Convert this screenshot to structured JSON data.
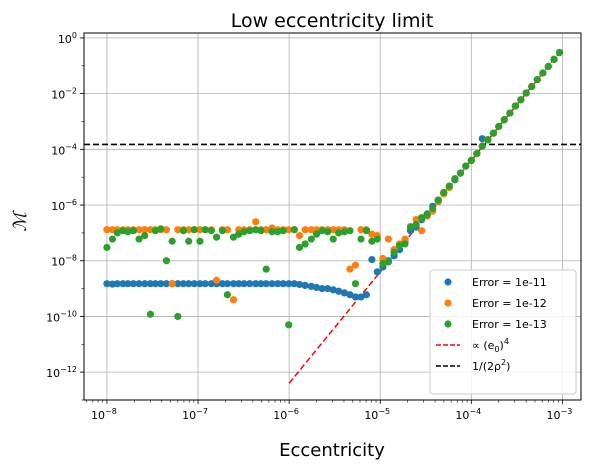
{
  "chart_data": {
    "type": "scatter",
    "title": "Low eccentricity limit",
    "xlabel": "Eccentricity",
    "ylabel": "ℳ",
    "xscale": "log",
    "yscale": "log",
    "xlim": [
      5.6e-09,
      0.0016
    ],
    "ylim": [
      1e-13,
      1.5
    ],
    "x_ticks": [
      {
        "value": 1e-08,
        "base": "10",
        "exp": "−8"
      },
      {
        "value": 1e-07,
        "base": "10",
        "exp": "−7"
      },
      {
        "value": 1e-06,
        "base": "10",
        "exp": "−6"
      },
      {
        "value": 1e-05,
        "base": "10",
        "exp": "−5"
      },
      {
        "value": 0.0001,
        "base": "10",
        "exp": "−4"
      },
      {
        "value": 0.001,
        "base": "10",
        "exp": "−3"
      }
    ],
    "y_ticks": [
      {
        "value": 1e-12,
        "base": "10",
        "exp": "−12"
      },
      {
        "value": 1e-10,
        "base": "10",
        "exp": "−10"
      },
      {
        "value": 1e-08,
        "base": "10",
        "exp": "−8"
      },
      {
        "value": 1e-06,
        "base": "10",
        "exp": "−6"
      },
      {
        "value": 0.0001,
        "base": "10",
        "exp": "−4"
      },
      {
        "value": 0.01,
        "base": "10",
        "exp": "−2"
      },
      {
        "value": 1,
        "base": "10",
        "exp": "0"
      }
    ],
    "grid": true,
    "legend_position": "lower-right",
    "x": [
      1e-08,
      1.1e-08,
      1.3e-08,
      1.5e-08,
      1.7e-08,
      2e-08,
      2.2e-08,
      2.6e-08,
      3e-08,
      3.4e-08,
      3.9e-08,
      4.5e-08,
      5.2e-08,
      6e-08,
      6.9e-08,
      7.9e-08,
      9.1e-08,
      1.05e-07,
      1.2e-07,
      1.4e-07,
      1.6e-07,
      1.8e-07,
      2.1e-07,
      2.4e-07,
      2.8e-07,
      3.2e-07,
      3.7e-07,
      4.3e-07,
      4.9e-07,
      5.6e-07,
      6.5e-07,
      7.5e-07,
      8.6e-07,
      9.9e-07,
      1.14e-06,
      1.3e-06,
      1.5e-06,
      1.7e-06,
      2e-06,
      2.3e-06,
      2.6e-06,
      3e-06,
      3.5e-06,
      4e-06,
      4.6e-06,
      5.3e-06,
      6.1e-06,
      7e-06,
      8.1e-06,
      9.3e-06,
      1.07e-05,
      1.23e-05,
      1.42e-05,
      1.63e-05,
      1.87e-05,
      2.15e-05,
      2.48e-05,
      2.85e-05,
      3.28e-05,
      3.77e-05,
      4.33e-05,
      4.98e-05,
      5.73e-05,
      6.6e-05,
      7.6e-05,
      8.7e-05,
      0.0001,
      0.000115,
      0.000132,
      0.000152,
      0.000175,
      0.0002,
      0.00023,
      0.000265,
      0.000305,
      0.00035,
      0.0004,
      0.00046,
      0.00053,
      0.00061,
      0.0007,
      0.00081,
      0.00093
    ],
    "series": [
      {
        "name": "Error = 1e-11",
        "color": "#1f77b4",
        "kind": "points",
        "points": [
          [
            1e-08,
            1.5e-09
          ],
          [
            1.15e-08,
            1.45e-09
          ],
          [
            1.3e-08,
            1.5e-09
          ],
          [
            1.5e-08,
            1.5e-09
          ],
          [
            1.7e-08,
            1.5e-09
          ],
          [
            1.95e-08,
            1.5e-09
          ],
          [
            2.25e-08,
            1.5e-09
          ],
          [
            2.6e-08,
            1.5e-09
          ],
          [
            3e-08,
            1.5e-09
          ],
          [
            3.4e-08,
            1.5e-09
          ],
          [
            3.9e-08,
            1.5e-09
          ],
          [
            4.5e-08,
            1.5e-09
          ],
          [
            5.2e-08,
            1.5e-09
          ],
          [
            6e-08,
            1.5e-09
          ],
          [
            6.9e-08,
            1.5e-09
          ],
          [
            7.9e-08,
            1.5e-09
          ],
          [
            9.1e-08,
            1.5e-09
          ],
          [
            1.05e-07,
            1.5e-09
          ],
          [
            1.2e-07,
            1.5e-09
          ],
          [
            1.4e-07,
            1.5e-09
          ],
          [
            1.6e-07,
            1.5e-09
          ],
          [
            1.85e-07,
            1.5e-09
          ],
          [
            2.1e-07,
            1.5e-09
          ],
          [
            2.45e-07,
            1.5e-09
          ],
          [
            2.8e-07,
            1.5e-09
          ],
          [
            3.2e-07,
            1.5e-09
          ],
          [
            3.7e-07,
            1.5e-09
          ],
          [
            4.3e-07,
            1.5e-09
          ],
          [
            4.9e-07,
            1.5e-09
          ],
          [
            5.6e-07,
            1.5e-09
          ],
          [
            6.5e-07,
            1.5e-09
          ],
          [
            7.5e-07,
            1.5e-09
          ],
          [
            8.6e-07,
            1.5e-09
          ],
          [
            9.9e-07,
            1.5e-09
          ],
          [
            1.14e-06,
            1.5e-09
          ],
          [
            1.3e-06,
            1.4e-09
          ],
          [
            1.5e-06,
            1.3e-09
          ],
          [
            1.75e-06,
            1.2e-09
          ],
          [
            2e-06,
            1.1e-09
          ],
          [
            2.3e-06,
            1e-09
          ],
          [
            2.65e-06,
            1e-09
          ],
          [
            3.05e-06,
            9e-10
          ],
          [
            3.5e-06,
            8e-10
          ],
          [
            4.05e-06,
            7e-10
          ],
          [
            4.65e-06,
            6e-10
          ],
          [
            5.35e-06,
            5e-10
          ],
          [
            6.15e-06,
            5e-10
          ],
          [
            7.05e-06,
            6e-10
          ],
          [
            8.1e-06,
            1.1e-08
          ],
          [
            9.3e-06,
            4e-09
          ],
          [
            1.07e-05,
            6e-09
          ],
          [
            1.23e-05,
            1e-08
          ],
          [
            1.42e-05,
            1.5e-08
          ],
          [
            1.63e-05,
            2.5e-08
          ],
          [
            1.87e-05,
            5e-08
          ],
          [
            2.15e-05,
            1.2e-07
          ],
          [
            2.48e-05,
            1.6e-07
          ],
          [
            2.85e-05,
            3e-07
          ],
          [
            3.28e-05,
            4.8e-07
          ],
          [
            3.77e-05,
            9e-07
          ],
          [
            4.33e-05,
            1.5e-06
          ],
          [
            4.98e-05,
            2.8e-06
          ],
          [
            5.73e-05,
            4.5e-06
          ],
          [
            6.6e-05,
            8e-06
          ],
          [
            7.6e-05,
            1.4e-05
          ],
          [
            8.7e-05,
            2.5e-05
          ],
          [
            0.0001,
            4e-05
          ],
          [
            0.000115,
            7e-05
          ],
          [
            0.000132,
            0.00024
          ],
          [
            0.000152,
            0.00022
          ],
          [
            0.000175,
            0.00038
          ],
          [
            0.0002,
            0.00066
          ],
          [
            0.00023,
            0.00115
          ],
          [
            0.000265,
            0.002
          ],
          [
            0.000305,
            0.0036
          ],
          [
            0.00035,
            0.006
          ],
          [
            0.0004,
            0.0105
          ],
          [
            0.00046,
            0.018
          ],
          [
            0.00053,
            0.032
          ],
          [
            0.00061,
            0.055
          ],
          [
            0.0007,
            0.095
          ],
          [
            0.00081,
            0.17
          ],
          [
            0.00093,
            0.3
          ]
        ]
      },
      {
        "name": "Error = 1e-12",
        "color": "#ff7f0e",
        "kind": "points",
        "points": [
          [
            1e-08,
            1.3e-07
          ],
          [
            1.15e-08,
            1.3e-07
          ],
          [
            1.3e-08,
            1.3e-07
          ],
          [
            1.5e-08,
            1.3e-07
          ],
          [
            1.7e-08,
            1.3e-07
          ],
          [
            1.95e-08,
            1.3e-07
          ],
          [
            2.25e-08,
            1.3e-07
          ],
          [
            2.6e-08,
            1.3e-07
          ],
          [
            3e-08,
            1.3e-07
          ],
          [
            3.4e-08,
            1.3e-07
          ],
          [
            3.9e-08,
            1.3e-07
          ],
          [
            4.5e-08,
            1.3e-07
          ],
          [
            5.2e-08,
            1.5e-09
          ],
          [
            6e-08,
            1.3e-07
          ],
          [
            6.9e-08,
            1.3e-07
          ],
          [
            7.9e-08,
            1.3e-07
          ],
          [
            9.1e-08,
            1.3e-07
          ],
          [
            1.05e-07,
            1.3e-07
          ],
          [
            1.2e-07,
            1.3e-07
          ],
          [
            1.4e-07,
            1.3e-07
          ],
          [
            1.6e-07,
            2e-09
          ],
          [
            1.85e-07,
            1.3e-07
          ],
          [
            2.1e-07,
            1.3e-07
          ],
          [
            2.45e-07,
            4e-10
          ],
          [
            2.8e-07,
            1.3e-07
          ],
          [
            3.2e-07,
            1.3e-07
          ],
          [
            3.7e-07,
            1.3e-07
          ],
          [
            4.3e-07,
            2.5e-07
          ],
          [
            4.9e-07,
            1.3e-07
          ],
          [
            5.6e-07,
            1.3e-07
          ],
          [
            6.5e-07,
            1.5e-07
          ],
          [
            7.5e-07,
            1.3e-07
          ],
          [
            8.6e-07,
            1.3e-07
          ],
          [
            9.9e-07,
            1.3e-07
          ],
          [
            1.14e-06,
            1.3e-07
          ],
          [
            1.3e-06,
            8e-08
          ],
          [
            1.5e-06,
            1.3e-07
          ],
          [
            1.75e-06,
            1.3e-07
          ],
          [
            2e-06,
            1.3e-07
          ],
          [
            2.3e-06,
            1.3e-07
          ],
          [
            2.65e-06,
            1.3e-07
          ],
          [
            3.05e-06,
            1.3e-07
          ],
          [
            3.5e-06,
            1.3e-07
          ],
          [
            4.05e-06,
            1.3e-07
          ],
          [
            4.65e-06,
            5e-09
          ],
          [
            5.35e-06,
            7e-09
          ],
          [
            6.15e-06,
            1.3e-07
          ],
          [
            7.05e-06,
            1.3e-07
          ],
          [
            8.1e-06,
            9e-08
          ],
          [
            9.3e-06,
            8e-08
          ],
          [
            1.07e-05,
            1.2e-08
          ],
          [
            1.23e-05,
            6e-08
          ],
          [
            1.42e-05,
            2.5e-08
          ],
          [
            1.63e-05,
            4e-08
          ],
          [
            1.87e-05,
            6e-08
          ],
          [
            2.15e-05,
            1.7e-07
          ],
          [
            2.48e-05,
            3e-07
          ],
          [
            2.85e-05,
            1.2e-07
          ],
          [
            3.28e-05,
            4e-07
          ],
          [
            3.77e-05,
            6e-07
          ],
          [
            4.33e-05,
            1.3e-06
          ],
          [
            4.98e-05,
            2.5e-06
          ],
          [
            5.73e-05,
            4.2e-06
          ],
          [
            6.6e-05,
            9e-06
          ],
          [
            7.6e-05,
            1.4e-05
          ],
          [
            8.7e-05,
            2.5e-05
          ],
          [
            0.0001,
            4e-05
          ],
          [
            0.000115,
            7e-05
          ],
          [
            0.000132,
            0.00013
          ],
          [
            0.000152,
            0.00022
          ],
          [
            0.000175,
            0.00038
          ],
          [
            0.0002,
            0.00066
          ],
          [
            0.00023,
            0.00115
          ],
          [
            0.000265,
            0.002
          ],
          [
            0.000305,
            0.0036
          ],
          [
            0.00035,
            0.006
          ],
          [
            0.0004,
            0.0105
          ],
          [
            0.00046,
            0.018
          ],
          [
            0.00053,
            0.032
          ],
          [
            0.00061,
            0.055
          ],
          [
            0.0007,
            0.095
          ],
          [
            0.00081,
            0.17
          ],
          [
            0.00093,
            0.3
          ]
        ]
      },
      {
        "name": "Error = 1e-13",
        "color": "#2ca02c",
        "kind": "points",
        "points": [
          [
            1e-08,
            3e-08
          ],
          [
            1.15e-08,
            6e-08
          ],
          [
            1.3e-08,
            1e-07
          ],
          [
            1.5e-08,
            1.2e-07
          ],
          [
            1.7e-08,
            1.1e-07
          ],
          [
            1.95e-08,
            1.2e-07
          ],
          [
            2.25e-08,
            6e-08
          ],
          [
            2.6e-08,
            8e-08
          ],
          [
            3e-08,
            1.2e-10
          ],
          [
            3.4e-08,
            1.2e-07
          ],
          [
            3.9e-08,
            1.4e-07
          ],
          [
            4.5e-08,
            1e-08
          ],
          [
            5.2e-08,
            5e-08
          ],
          [
            6e-08,
            1e-10
          ],
          [
            6.9e-08,
            1.2e-07
          ],
          [
            7.9e-08,
            5e-08
          ],
          [
            9.1e-08,
            1.3e-07
          ],
          [
            1.05e-07,
            5e-08
          ],
          [
            1.2e-07,
            1.3e-07
          ],
          [
            1.4e-07,
            1.2e-07
          ],
          [
            1.6e-07,
            7e-08
          ],
          [
            1.85e-07,
            1.2e-07
          ],
          [
            2.1e-07,
            6e-10
          ],
          [
            2.45e-07,
            7e-08
          ],
          [
            2.8e-07,
            9e-08
          ],
          [
            3.2e-07,
            1.1e-07
          ],
          [
            3.7e-07,
            1.2e-07
          ],
          [
            4.3e-07,
            1.3e-07
          ],
          [
            4.9e-07,
            1.2e-07
          ],
          [
            5.6e-07,
            5e-09
          ],
          [
            6.5e-07,
            1.1e-07
          ],
          [
            7.5e-07,
            1.1e-07
          ],
          [
            8.6e-07,
            1.2e-07
          ],
          [
            9.9e-07,
            5e-11
          ],
          [
            1.14e-06,
            1.3e-07
          ],
          [
            1.3e-06,
            3e-08
          ],
          [
            1.5e-06,
            4e-08
          ],
          [
            1.75e-06,
            6e-08
          ],
          [
            2e-06,
            9e-08
          ],
          [
            2.3e-06,
            1.2e-07
          ],
          [
            2.65e-06,
            1.1e-07
          ],
          [
            3.05e-06,
            6e-08
          ],
          [
            3.5e-06,
            1e-07
          ],
          [
            4.05e-06,
            1.1e-07
          ],
          [
            4.65e-06,
            1.2e-07
          ],
          [
            5.35e-06,
            1.5e-09
          ],
          [
            6.15e-06,
            6e-08
          ],
          [
            7.05e-06,
            1.2e-07
          ],
          [
            8.1e-06,
            5e-08
          ],
          [
            9.3e-06,
            6e-08
          ],
          [
            1.07e-05,
            8e-09
          ],
          [
            1.23e-05,
            9e-09
          ],
          [
            1.42e-05,
            2e-08
          ],
          [
            1.63e-05,
            3.5e-08
          ],
          [
            1.87e-05,
            4e-08
          ],
          [
            2.15e-05,
            1.6e-07
          ],
          [
            2.48e-05,
            2e-07
          ],
          [
            2.85e-05,
            3.5e-07
          ],
          [
            3.28e-05,
            4.5e-07
          ],
          [
            3.77e-05,
            7.5e-07
          ],
          [
            4.33e-05,
            1.5e-06
          ],
          [
            4.98e-05,
            2.8e-06
          ],
          [
            5.73e-05,
            4.8e-06
          ],
          [
            6.6e-05,
            8.5e-06
          ],
          [
            7.6e-05,
            1.4e-05
          ],
          [
            8.7e-05,
            2.5e-05
          ],
          [
            0.0001,
            4e-05
          ],
          [
            0.000115,
            7e-05
          ],
          [
            0.000132,
            0.00013
          ],
          [
            0.000152,
            0.00022
          ],
          [
            0.000175,
            0.00038
          ],
          [
            0.0002,
            0.00066
          ],
          [
            0.00023,
            0.00115
          ],
          [
            0.000265,
            0.002
          ],
          [
            0.000305,
            0.0036
          ],
          [
            0.00035,
            0.006
          ],
          [
            0.0004,
            0.0105
          ],
          [
            0.00046,
            0.018
          ],
          [
            0.00053,
            0.032
          ],
          [
            0.00061,
            0.055
          ],
          [
            0.0007,
            0.095
          ],
          [
            0.00081,
            0.17
          ],
          [
            0.00093,
            0.3
          ]
        ]
      }
    ],
    "lines": [
      {
        "name_prefix": "∝ (e",
        "name_sub": "0",
        "name_suffix": ")",
        "name_sup": "4",
        "color": "#ff0000",
        "dash": "dashed",
        "points": [
          [
            1e-06,
            4e-13
          ],
          [
            0.00093,
            0.3
          ]
        ]
      },
      {
        "name_prefix": "1/(2ρ",
        "name_sup": "2",
        "name_suffix": ")",
        "color": "#000000",
        "dash": "dashed",
        "horizontal": true,
        "y": 0.00015
      }
    ]
  }
}
